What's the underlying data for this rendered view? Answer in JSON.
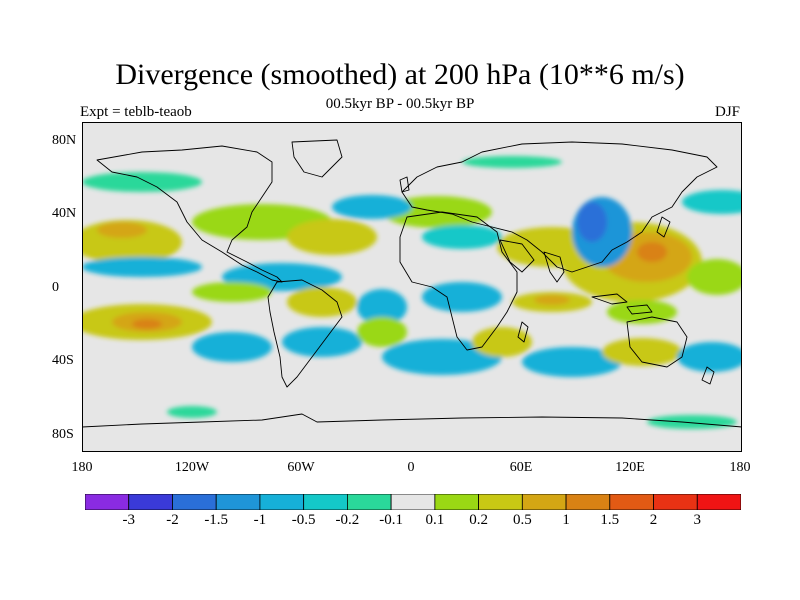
{
  "title": "Divergence (smoothed) at 200 hPa (10**6 m/s)",
  "subtitle_left": "Expt = teblb-teaob",
  "subtitle_center": "00.5kyr BP - 00.5kyr BP",
  "subtitle_right": "DJF",
  "y_ticks": [
    "80N",
    "40N",
    "0",
    "40S",
    "80S"
  ],
  "x_ticks": [
    "180",
    "120W",
    "60W",
    "0",
    "60E",
    "120E",
    "180"
  ],
  "colorbar": {
    "labels": [
      "-3",
      "-2",
      "-1.5",
      "-1",
      "-0.5",
      "-0.2",
      "-0.1",
      "0.1",
      "0.2",
      "0.5",
      "1",
      "1.5",
      "2",
      "3"
    ],
    "colors": [
      "#8a2be2",
      "#3a3ad8",
      "#2a6fd8",
      "#1f95d8",
      "#16b0d8",
      "#14c8c8",
      "#2ad89a",
      "#e6e6e6",
      "#9ad814",
      "#c8c814",
      "#d4a614",
      "#d98214",
      "#e25a14",
      "#e83214",
      "#f01414"
    ]
  },
  "map": {
    "ocean_color": "#e6e6e6",
    "coast_color": "#000000"
  }
}
